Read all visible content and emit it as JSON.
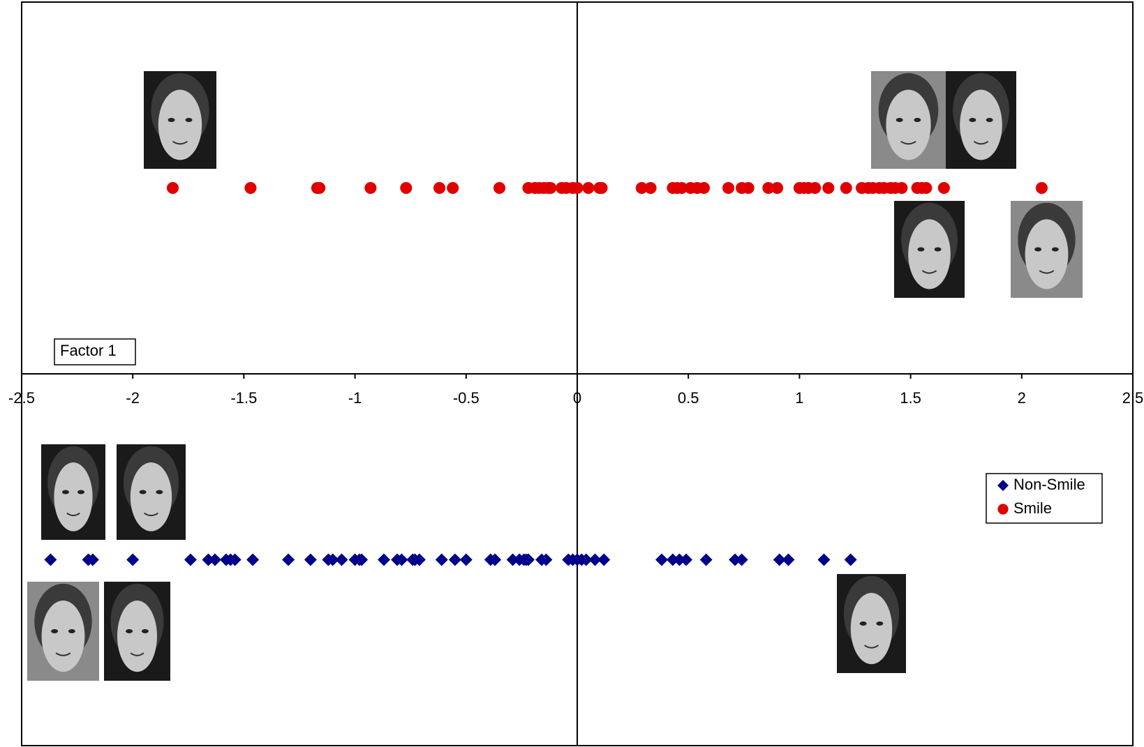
{
  "chart_data": {
    "type": "scatter",
    "axis_label": "Factor 1",
    "xlim": [
      -2.5,
      2.5
    ],
    "xticks": [
      -2.5,
      -2,
      -1.5,
      -1,
      -0.5,
      0,
      0.5,
      1,
      1.5,
      2,
      2.5
    ],
    "ylim": [
      -1,
      1
    ],
    "legend": "right",
    "series": [
      {
        "name": "Non-Smile",
        "color": "#00008b",
        "marker": "diamond",
        "x": [
          -2.37,
          -2.2,
          -2.18,
          -2.0,
          -1.74,
          -1.66,
          -1.63,
          -1.58,
          -1.56,
          -1.54,
          -1.46,
          -1.3,
          -1.2,
          -1.12,
          -1.1,
          -1.06,
          -1.0,
          -0.98,
          -0.97,
          -0.87,
          -0.81,
          -0.79,
          -0.74,
          -0.73,
          -0.71,
          -0.61,
          -0.55,
          -0.5,
          -0.39,
          -0.37,
          -0.29,
          -0.26,
          -0.24,
          -0.23,
          -0.22,
          -0.16,
          -0.14,
          -0.04,
          -0.02,
          0.0,
          0.02,
          0.04,
          0.08,
          0.12,
          0.38,
          0.43,
          0.46,
          0.49,
          0.58,
          0.71,
          0.74,
          0.91,
          0.95,
          1.11,
          1.23
        ],
        "values": [
          -0.5,
          -0.5,
          -0.5,
          -0.5,
          -0.5,
          -0.5,
          -0.5,
          -0.5,
          -0.5,
          -0.5,
          -0.5,
          -0.5,
          -0.5,
          -0.5,
          -0.5,
          -0.5,
          -0.5,
          -0.5,
          -0.5,
          -0.5,
          -0.5,
          -0.5,
          -0.5,
          -0.5,
          -0.5,
          -0.5,
          -0.5,
          -0.5,
          -0.5,
          -0.5,
          -0.5,
          -0.5,
          -0.5,
          -0.5,
          -0.5,
          -0.5,
          -0.5,
          -0.5,
          -0.5,
          -0.5,
          -0.5,
          -0.5,
          -0.5,
          -0.5,
          -0.5,
          -0.5,
          -0.5,
          -0.5,
          -0.5,
          -0.5,
          -0.5,
          -0.5,
          -0.5,
          -0.5,
          -0.5
        ]
      },
      {
        "name": "Smile",
        "color": "#e00000",
        "marker": "circle",
        "x": [
          -1.82,
          -1.47,
          -1.17,
          -1.16,
          -0.93,
          -0.77,
          -0.62,
          -0.56,
          -0.35,
          -0.22,
          -0.19,
          -0.17,
          -0.15,
          -0.13,
          -0.12,
          -0.07,
          -0.05,
          -0.02,
          0.0,
          0.05,
          0.1,
          0.11,
          0.29,
          0.33,
          0.43,
          0.45,
          0.47,
          0.51,
          0.54,
          0.57,
          0.68,
          0.74,
          0.77,
          0.86,
          0.9,
          1.0,
          1.02,
          1.04,
          1.07,
          1.13,
          1.21,
          1.28,
          1.31,
          1.33,
          1.36,
          1.38,
          1.41,
          1.43,
          1.46,
          1.53,
          1.55,
          1.57,
          1.65,
          2.09
        ],
        "values": [
          0.5,
          0.5,
          0.5,
          0.5,
          0.5,
          0.5,
          0.5,
          0.5,
          0.5,
          0.5,
          0.5,
          0.5,
          0.5,
          0.5,
          0.5,
          0.5,
          0.5,
          0.5,
          0.5,
          0.5,
          0.5,
          0.5,
          0.5,
          0.5,
          0.5,
          0.5,
          0.5,
          0.5,
          0.5,
          0.5,
          0.5,
          0.5,
          0.5,
          0.5,
          0.5,
          0.5,
          0.5,
          0.5,
          0.5,
          0.5,
          0.5,
          0.5,
          0.5,
          0.5,
          0.5,
          0.5,
          0.5,
          0.5,
          0.5,
          0.5,
          0.5,
          0.5,
          0.5,
          0.5
        ]
      }
    ]
  }
}
